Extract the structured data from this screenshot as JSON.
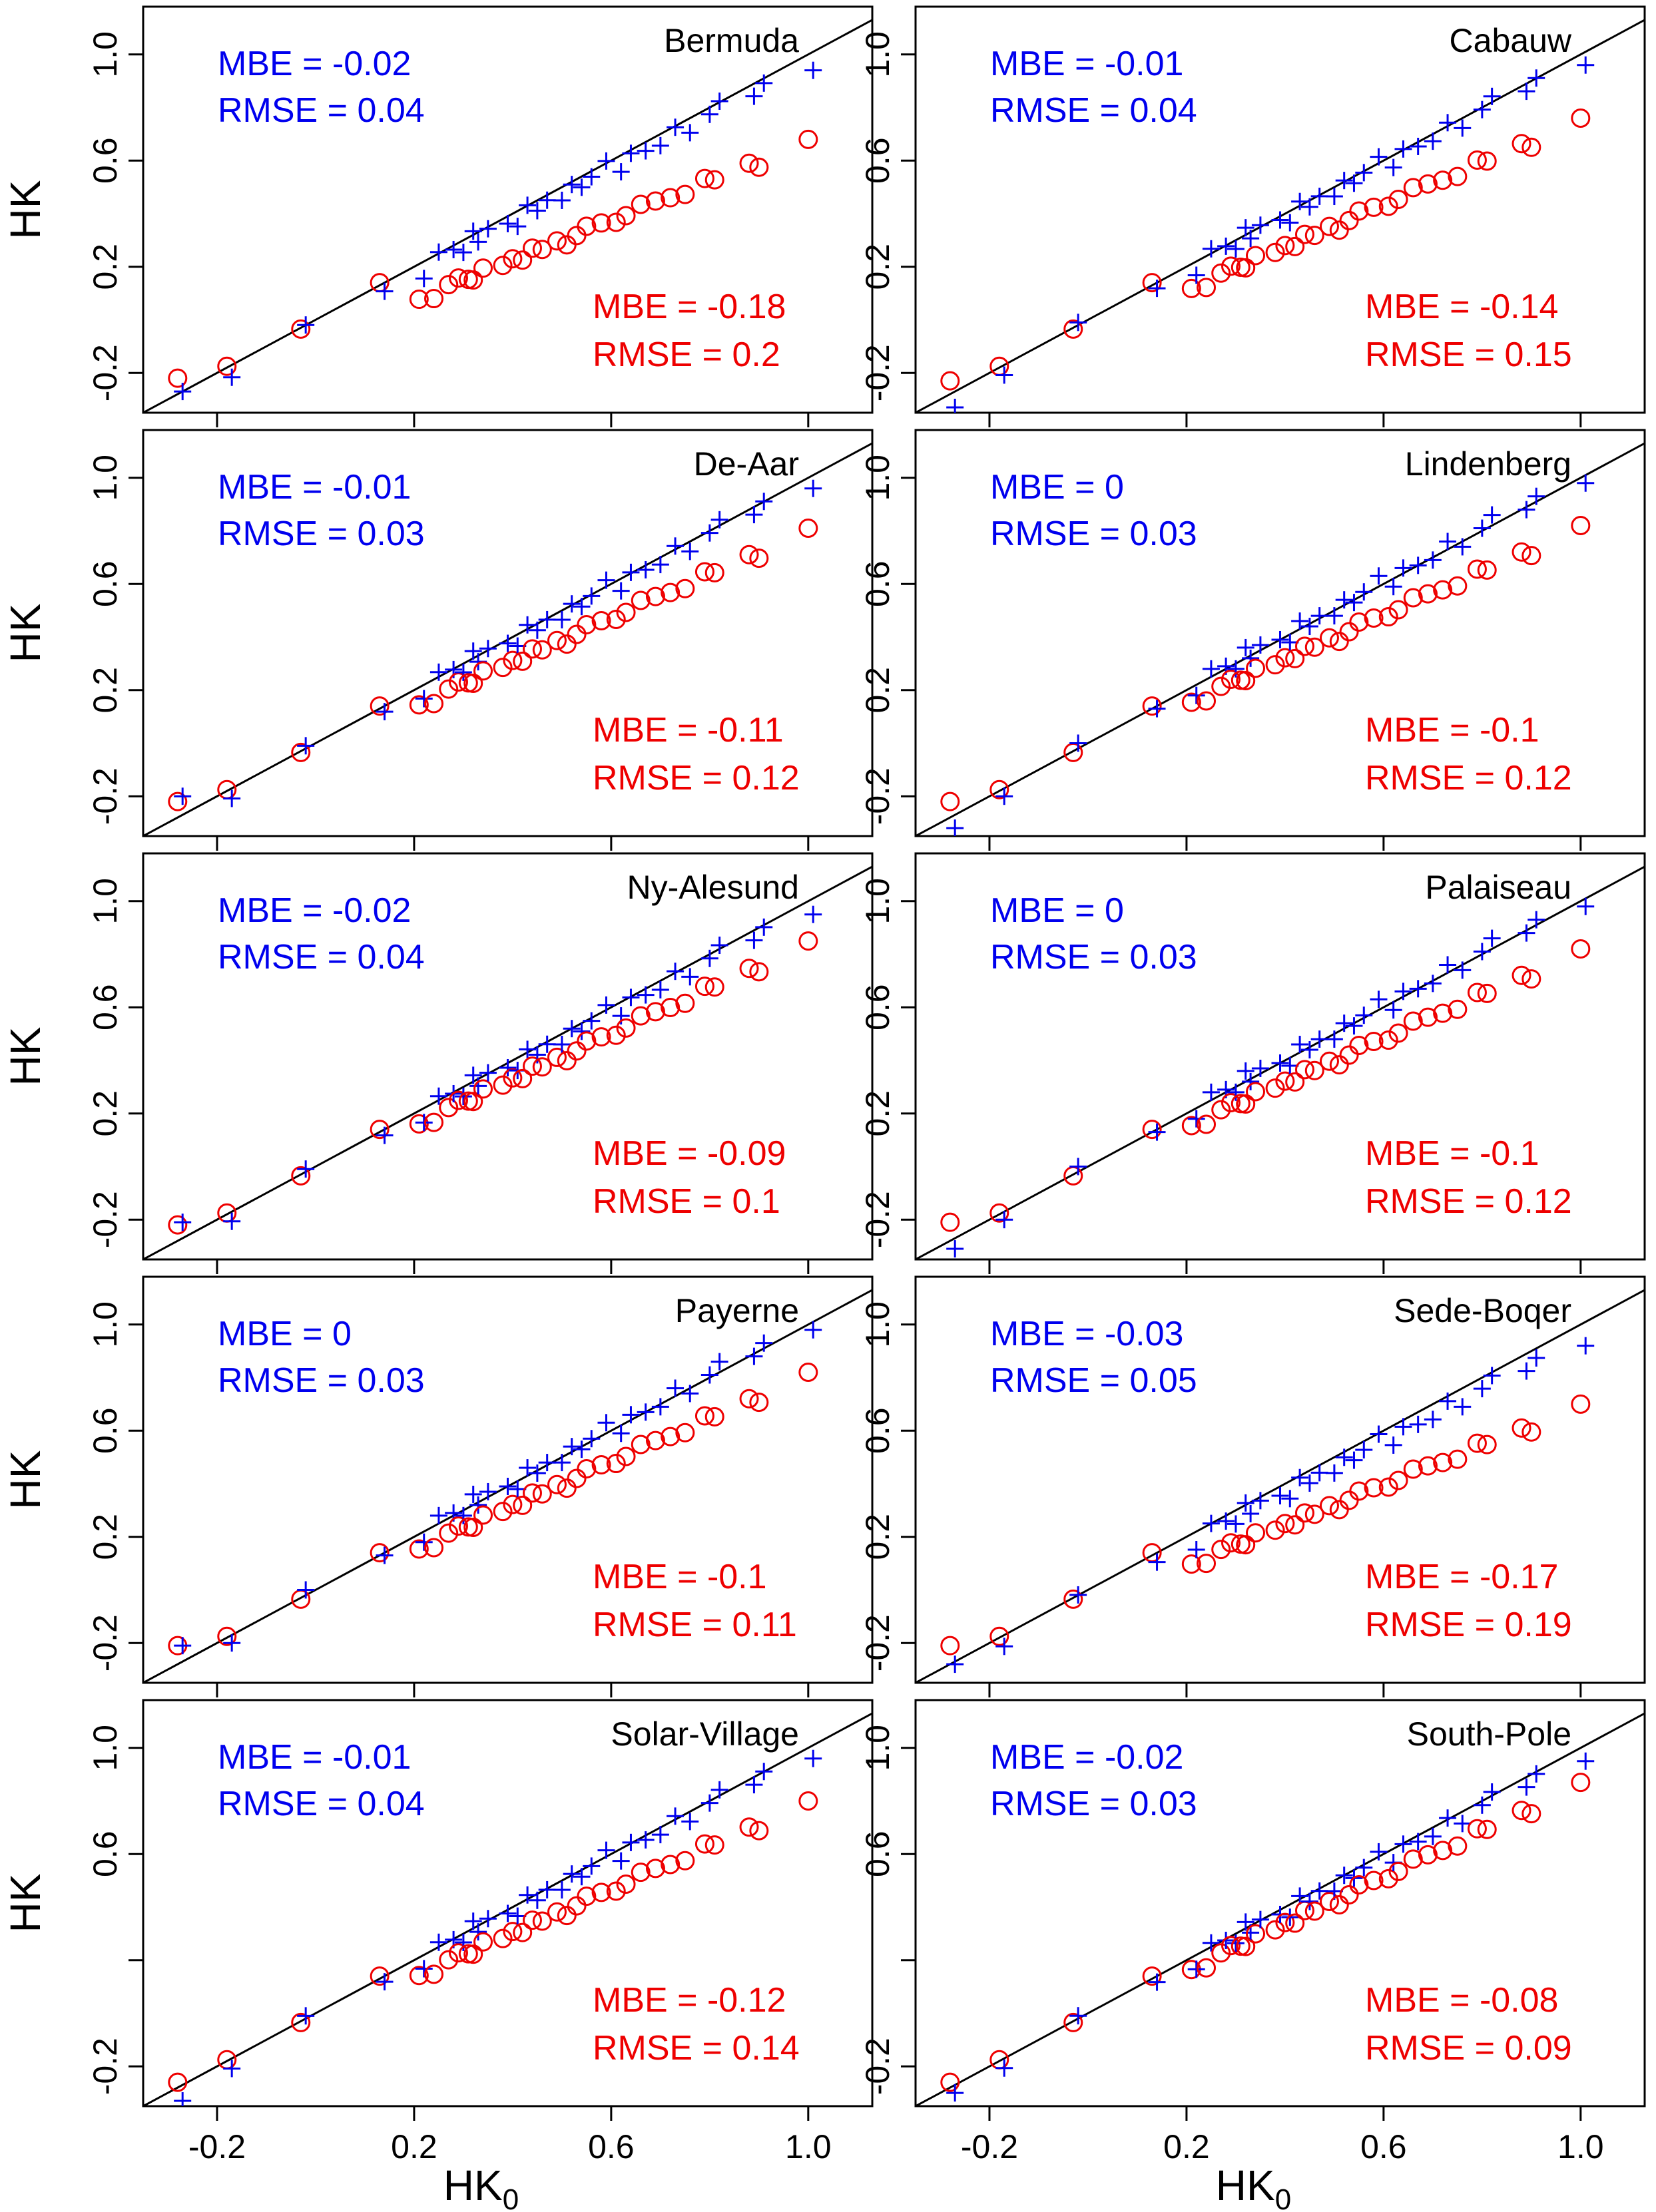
{
  "colors": {
    "series_a": "#0000ee",
    "series_b": "#ee0000",
    "axis": "#000000",
    "background": "#ffffff"
  },
  "chart_data": {
    "type": "scatter",
    "layout": "5 rows x 2 columns small multiples with shared axes",
    "xlabel": "HK",
    "xlabel_sub": "0",
    "ylabel": "HK",
    "xlim": [
      -0.35,
      1.13
    ],
    "ylim": [
      -0.35,
      1.18
    ],
    "x_ticks": [
      "-0.2",
      "0.2",
      "0.6",
      "1.0"
    ],
    "y_ticks": [
      "-0.2",
      "0.2",
      "0.6",
      "1.0"
    ],
    "y_ticks_bottom_row": [
      "-0.2",
      "",
      "0.6",
      "1.0"
    ],
    "reference_line": "y = x",
    "series": [
      {
        "name": "blue crosses",
        "marker": "plus"
      },
      {
        "name": "red circles",
        "marker": "circle"
      }
    ],
    "panels": [
      {
        "station": "Bermuda",
        "blue": {
          "mbe": "MBE = -0.02",
          "rmse": "RMSE = 0.04"
        },
        "red": {
          "mbe": "MBE = -0.18",
          "rmse": "RMSE = 0.2"
        },
        "blue_slope": 0.98,
        "blue_offset": -0.02,
        "red_slope": 0.75,
        "red_offset": -0.08,
        "red_first": -0.22,
        "blue_first": -0.27
      },
      {
        "station": "Cabauw",
        "blue": {
          "mbe": "MBE = -0.01",
          "rmse": "RMSE = 0.04"
        },
        "red": {
          "mbe": "MBE = -0.14",
          "rmse": "RMSE = 0.15"
        },
        "blue_slope": 0.99,
        "blue_offset": -0.01,
        "red_slope": 0.8,
        "red_offset": -0.05,
        "red_first": -0.23,
        "blue_first": -0.33
      },
      {
        "station": "De-Aar",
        "blue": {
          "mbe": "MBE = -0.01",
          "rmse": "RMSE = 0.03"
        },
        "red": {
          "mbe": "MBE = -0.11",
          "rmse": "RMSE = 0.12"
        },
        "blue_slope": 0.99,
        "blue_offset": -0.01,
        "red_slope": 0.83,
        "red_offset": -0.03,
        "red_first": -0.22,
        "blue_first": -0.2
      },
      {
        "station": "Lindenberg",
        "blue": {
          "mbe": "MBE = 0",
          "rmse": "RMSE = 0.03"
        },
        "red": {
          "mbe": "MBE = -0.1",
          "rmse": "RMSE = 0.12"
        },
        "blue_slope": 1.0,
        "blue_offset": 0.0,
        "red_slope": 0.83,
        "red_offset": -0.02,
        "red_first": -0.22,
        "blue_first": -0.32
      },
      {
        "station": "Ny-Alesund",
        "blue": {
          "mbe": "MBE = -0.02",
          "rmse": "RMSE = 0.04"
        },
        "red": {
          "mbe": "MBE = -0.09",
          "rmse": "RMSE = 0.1"
        },
        "blue_slope": 0.98,
        "blue_offset": -0.01,
        "red_slope": 0.86,
        "red_offset": -0.02,
        "red_first": -0.22,
        "blue_first": -0.21
      },
      {
        "station": "Palaiseau",
        "blue": {
          "mbe": "MBE = 0",
          "rmse": "RMSE = 0.03"
        },
        "red": {
          "mbe": "MBE = -0.1",
          "rmse": "RMSE = 0.12"
        },
        "blue_slope": 1.0,
        "blue_offset": 0.0,
        "red_slope": 0.83,
        "red_offset": -0.02,
        "red_first": -0.21,
        "blue_first": -0.31
      },
      {
        "station": "Payerne",
        "blue": {
          "mbe": "MBE = 0",
          "rmse": "RMSE = 0.03"
        },
        "red": {
          "mbe": "MBE = -0.1",
          "rmse": "RMSE = 0.11"
        },
        "blue_slope": 1.0,
        "blue_offset": 0.0,
        "red_slope": 0.83,
        "red_offset": -0.02,
        "red_first": -0.21,
        "blue_first": -0.21
      },
      {
        "station": "Sede-Boqer",
        "blue": {
          "mbe": "MBE = -0.03",
          "rmse": "RMSE = 0.05"
        },
        "red": {
          "mbe": "MBE = -0.17",
          "rmse": "RMSE = 0.19"
        },
        "blue_slope": 0.96,
        "blue_offset": -0.02,
        "red_slope": 0.75,
        "red_offset": -0.06,
        "red_first": -0.21,
        "blue_first": -0.28
      },
      {
        "station": "Solar-Village",
        "blue": {
          "mbe": "MBE = -0.01",
          "rmse": "RMSE = 0.04"
        },
        "red": {
          "mbe": "MBE = -0.12",
          "rmse": "RMSE = 0.14"
        },
        "blue_slope": 0.99,
        "blue_offset": -0.01,
        "red_slope": 0.82,
        "red_offset": -0.03,
        "red_first": -0.26,
        "blue_first": -0.33
      },
      {
        "station": "South-Pole",
        "blue": {
          "mbe": "MBE = -0.02",
          "rmse": "RMSE = 0.03"
        },
        "red": {
          "mbe": "MBE = -0.08",
          "rmse": "RMSE = 0.09"
        },
        "blue_slope": 0.98,
        "blue_offset": -0.01,
        "red_slope": 0.88,
        "red_offset": -0.02,
        "red_first": -0.26,
        "blue_first": -0.3
      }
    ]
  }
}
